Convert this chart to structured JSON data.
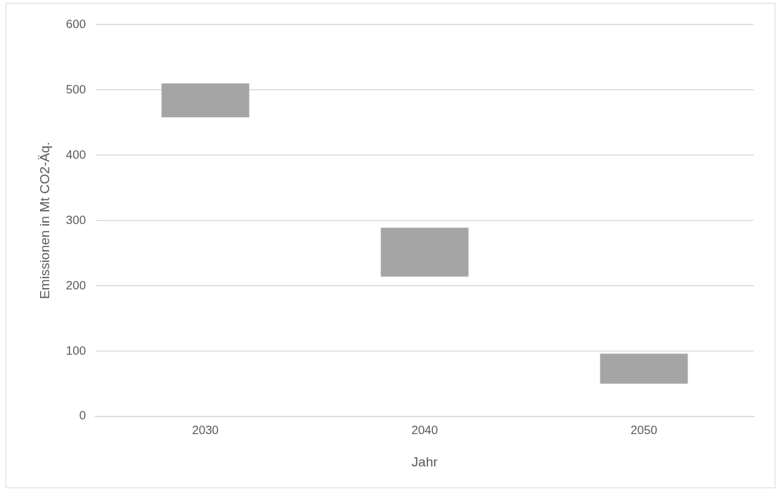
{
  "chart_data": {
    "type": "bar",
    "xlabel": "Jahr",
    "ylabel": "Emissionen in Mt CO2-Äq.",
    "categories": [
      "2030",
      "2040",
      "2050"
    ],
    "values": [
      52,
      75,
      46
    ],
    "base": [
      458,
      214,
      50
    ],
    "color": "#a5a5a5",
    "ylim": [
      0,
      600
    ],
    "yticks": [
      0,
      100,
      200,
      300,
      400,
      500,
      600
    ],
    "grid": "y",
    "legend": false
  }
}
